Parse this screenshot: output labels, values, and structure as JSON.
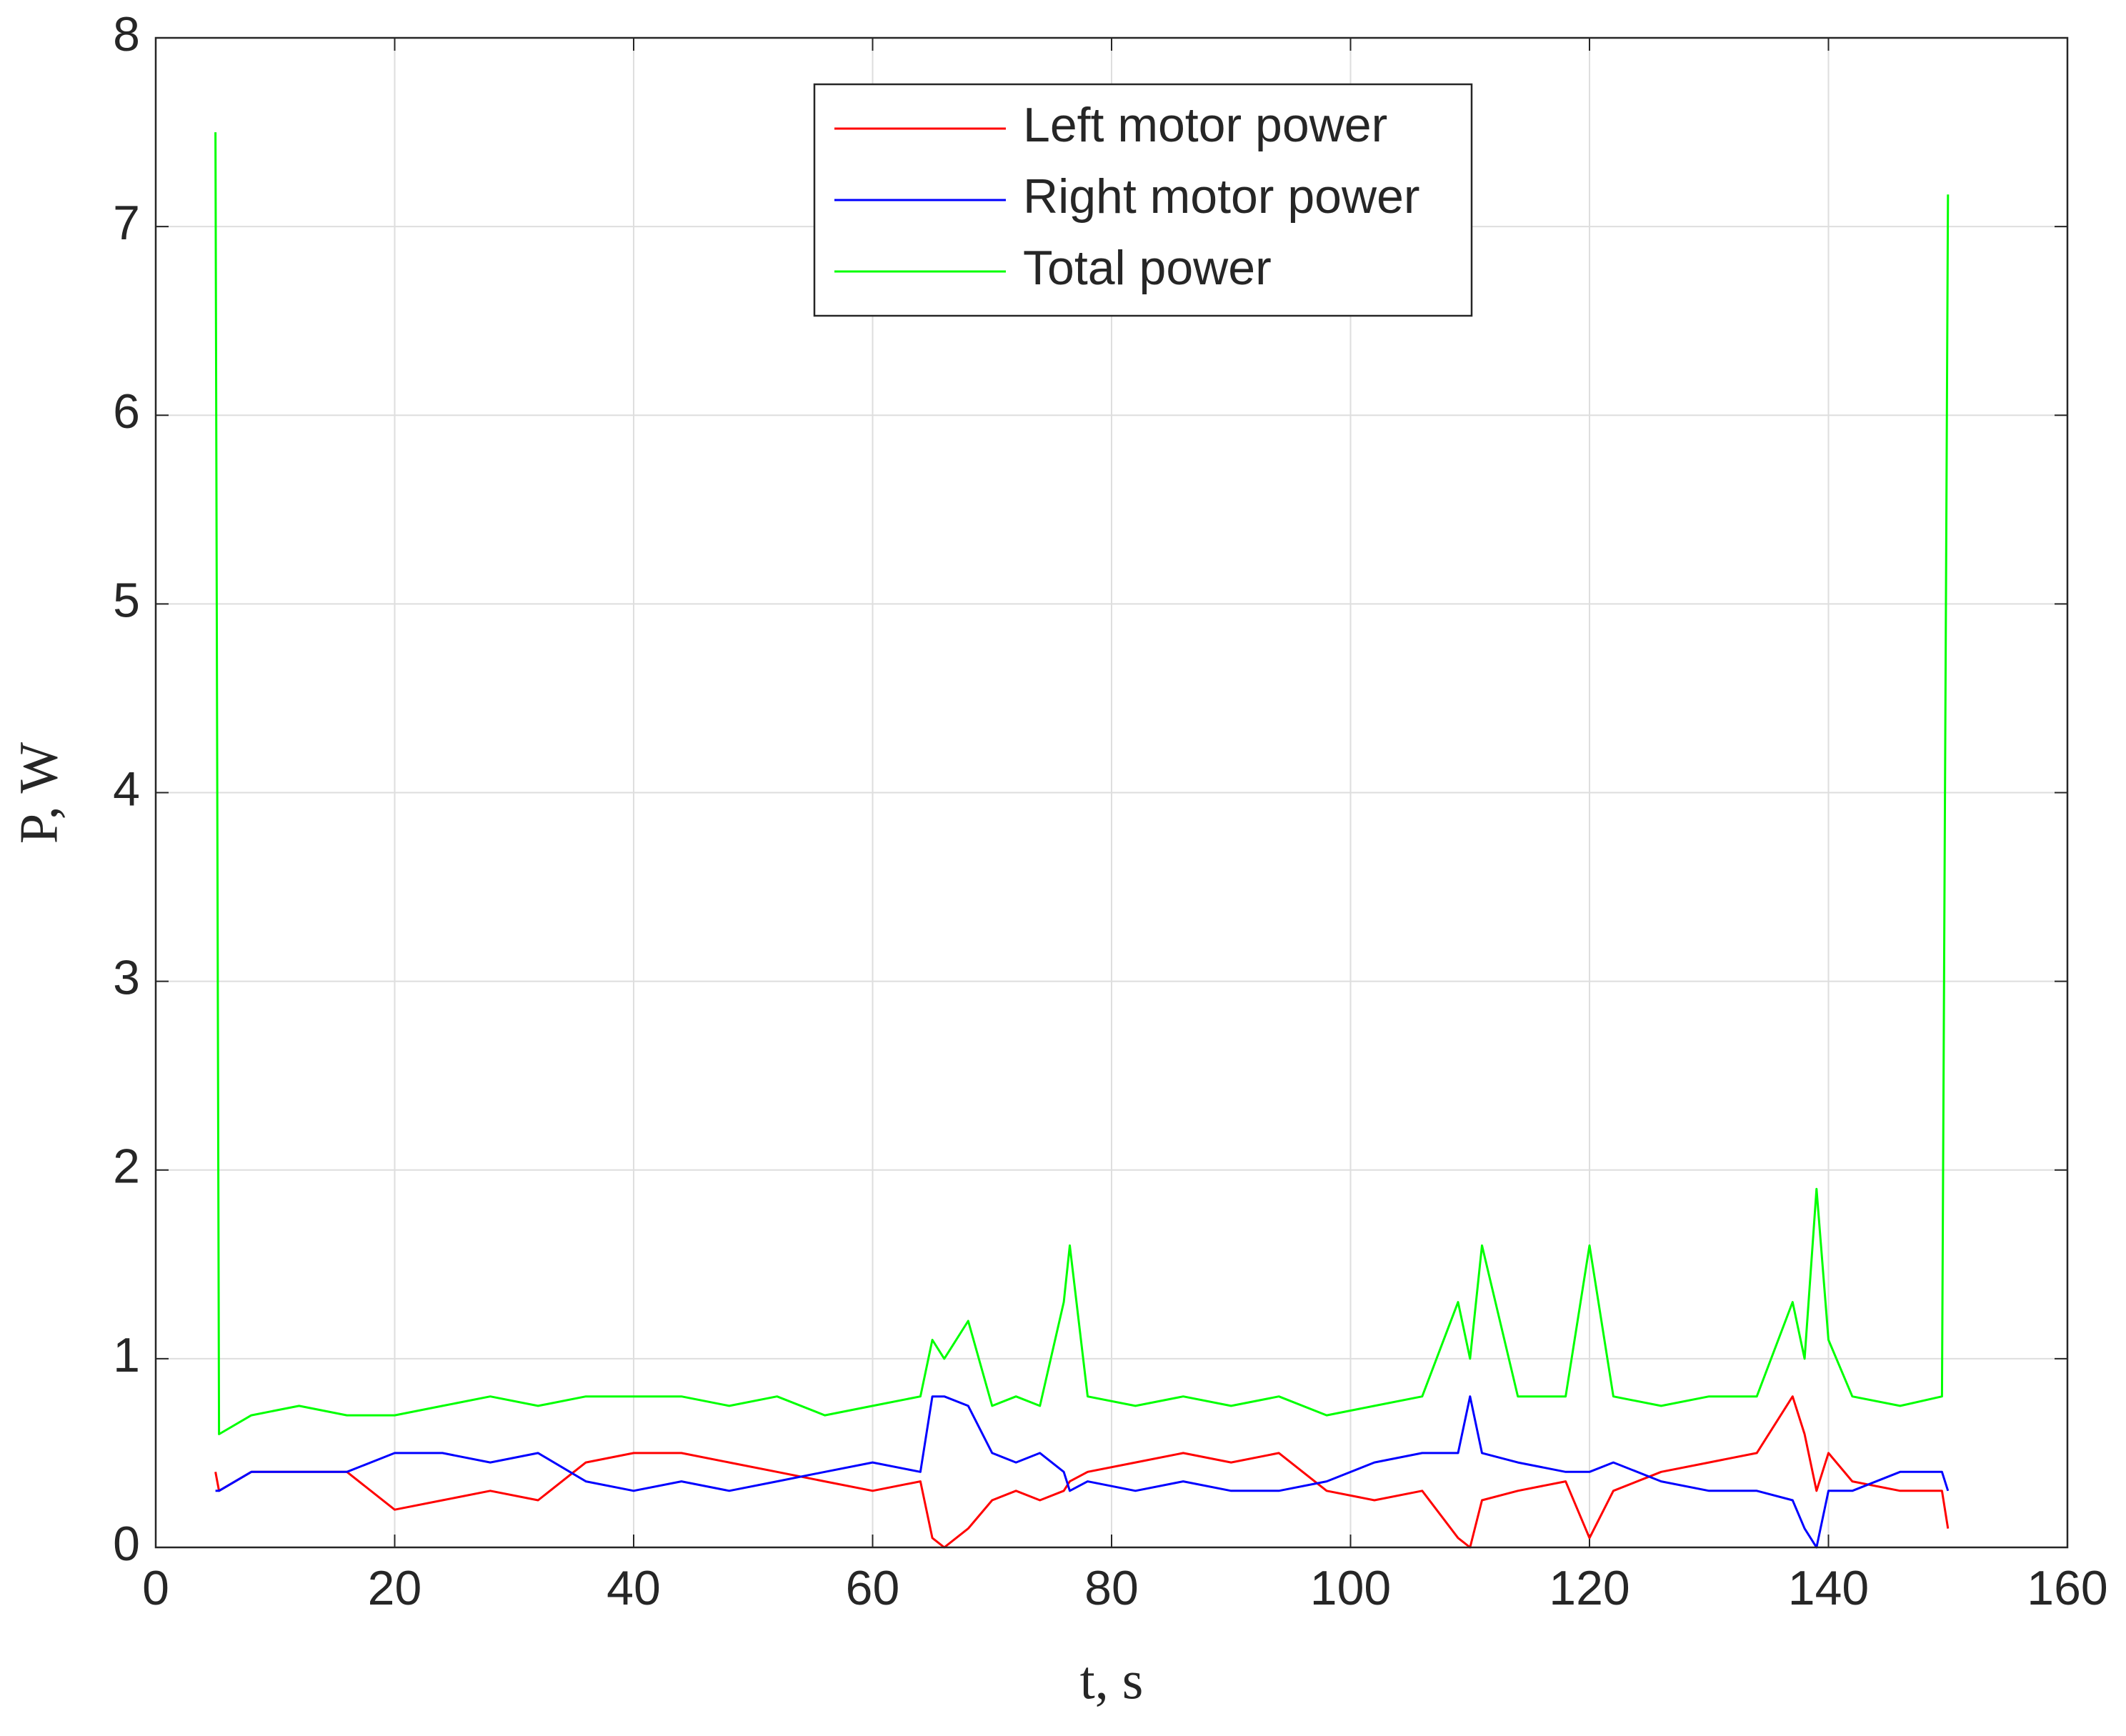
{
  "chart_data": {
    "type": "line",
    "xlabel": "t, s",
    "ylabel": "P, W",
    "x": [
      5,
      5.3,
      8,
      12,
      16,
      20,
      24,
      28,
      32,
      36,
      40,
      44,
      48,
      52,
      56,
      60,
      64,
      65,
      66,
      68,
      70,
      72,
      74,
      76,
      76.5,
      78,
      82,
      86,
      90,
      94,
      98,
      102,
      106,
      109,
      110,
      111,
      114,
      118,
      120,
      122,
      126,
      130,
      134,
      137,
      138,
      139,
      140,
      142,
      146,
      149.5,
      150
    ],
    "series": [
      {
        "name": "Left motor power",
        "color": "#ff0000",
        "values": [
          0.4,
          0.3,
          0.4,
          0.4,
          0.4,
          0.2,
          0.25,
          0.3,
          0.25,
          0.45,
          0.5,
          0.5,
          0.45,
          0.4,
          0.35,
          0.3,
          0.35,
          0.05,
          0,
          0.1,
          0.25,
          0.3,
          0.25,
          0.3,
          0.35,
          0.4,
          0.45,
          0.5,
          0.45,
          0.5,
          0.3,
          0.25,
          0.3,
          0.05,
          0,
          0.25,
          0.3,
          0.35,
          0.05,
          0.3,
          0.4,
          0.45,
          0.5,
          0.8,
          0.6,
          0.3,
          0.5,
          0.35,
          0.3,
          0.3,
          0.1
        ]
      },
      {
        "name": "Right motor power",
        "color": "#0000ff",
        "values": [
          0.3,
          0.3,
          0.4,
          0.4,
          0.4,
          0.5,
          0.5,
          0.45,
          0.5,
          0.35,
          0.3,
          0.35,
          0.3,
          0.35,
          0.4,
          0.45,
          0.4,
          0.8,
          0.8,
          0.75,
          0.5,
          0.45,
          0.5,
          0.4,
          0.3,
          0.35,
          0.3,
          0.35,
          0.3,
          0.3,
          0.35,
          0.45,
          0.5,
          0.5,
          0.8,
          0.5,
          0.45,
          0.4,
          0.4,
          0.45,
          0.35,
          0.3,
          0.3,
          0.25,
          0.1,
          0,
          0.3,
          0.3,
          0.4,
          0.4,
          0.3
        ]
      },
      {
        "name": "Total power",
        "color": "#00ff00",
        "values": [
          7.5,
          0.6,
          0.7,
          0.75,
          0.7,
          0.7,
          0.75,
          0.8,
          0.75,
          0.8,
          0.8,
          0.8,
          0.75,
          0.8,
          0.7,
          0.75,
          0.8,
          1.1,
          1.0,
          1.2,
          0.75,
          0.8,
          0.75,
          1.3,
          1.6,
          0.8,
          0.75,
          0.8,
          0.75,
          0.8,
          0.7,
          0.75,
          0.8,
          1.3,
          1.0,
          1.6,
          0.8,
          0.8,
          1.6,
          0.8,
          0.75,
          0.8,
          0.8,
          1.3,
          1.0,
          1.9,
          1.1,
          0.8,
          0.75,
          0.8,
          7.17
        ]
      }
    ],
    "xlim": [
      0,
      160
    ],
    "xticks": [
      0,
      20,
      40,
      60,
      80,
      100,
      120,
      140,
      160
    ],
    "ylim": [
      0,
      8
    ],
    "yticks": [
      0,
      1,
      2,
      3,
      4,
      5,
      6,
      7,
      8
    ],
    "grid": true,
    "legend": "north"
  }
}
